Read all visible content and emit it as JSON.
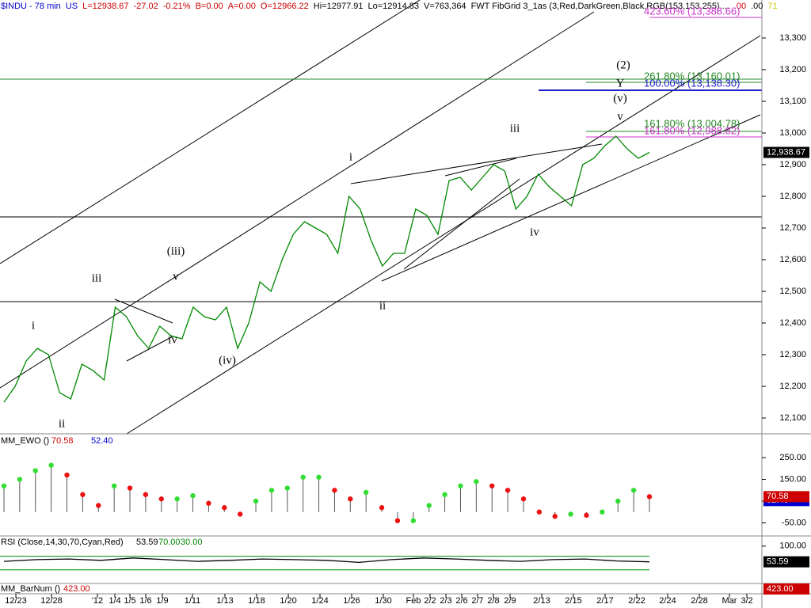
{
  "header": [
    {
      "text": "$INDU - 78 min",
      "color": "#0000cc"
    },
    {
      "text": "US",
      "color": "#0000cc"
    },
    {
      "text": "L=12938.67",
      "color": "#cc0000"
    },
    {
      "text": "-27.02",
      "color": "#cc0000"
    },
    {
      "text": "-0.21%",
      "color": "#cc0000"
    },
    {
      "text": "B=0.00",
      "color": "#cc0000"
    },
    {
      "text": "A=0.00",
      "color": "#cc0000"
    },
    {
      "text": "O=12966.22",
      "color": "#cc0000"
    },
    {
      "text": "Hi=12977.91",
      "color": "#000000"
    },
    {
      "text": "Lo=12914.83",
      "color": "#000000"
    },
    {
      "text": "V=763,364",
      "color": "#000000"
    },
    {
      "text": "FWT FibGrid 3_1as (3,Red,DarkGreen,Black,RGB(153,153,255)....",
      "color": "#000000"
    },
    {
      "text": ".00",
      "color": "#cc0000"
    },
    {
      "text": ".00",
      "color": "#000000"
    },
    {
      "text": "71",
      "color": "#cccc00"
    }
  ],
  "x_axis": [
    "12/23",
    "12/28",
    "'12",
    "1/4",
    "1/5",
    "1/6",
    "1/9",
    "1/11",
    "1/13",
    "1/18",
    "1/20",
    "1/24",
    "1/26",
    "1/30",
    "Feb",
    "2/2",
    "2/3",
    "2/6",
    "2/7",
    "2/8",
    "2/9",
    "2/13",
    "2/15",
    "2/17",
    "2/22",
    "2/24",
    "2/28",
    "Mar",
    "3/2"
  ],
  "chart_data": [
    {
      "type": "line",
      "series": [
        {
          "color": "#008800",
          "values": [
            12150,
            12200,
            12280,
            12320,
            12300,
            12180,
            12160,
            12270,
            12250,
            12220,
            12450,
            12420,
            12360,
            12320,
            12390,
            12360,
            12350,
            12450,
            12420,
            12410,
            12450,
            12320,
            12400,
            12530,
            12500,
            12600,
            12680,
            12720,
            12700,
            12680,
            12620,
            12800,
            12760,
            12660,
            12580,
            12620,
            12620,
            12760,
            12740,
            12680,
            12850,
            12860,
            12820,
            12860,
            12900,
            12880,
            12760,
            12800,
            12870,
            12830,
            12800,
            12770,
            12900,
            12920,
            12960,
            12990,
            12950,
            12920,
            12938.67
          ]
        }
      ],
      "ylim": [
        12050,
        13420
      ],
      "yticks": [
        {
          "value": 13300,
          "label": "13,300"
        },
        {
          "value": 13200,
          "label": "13,200"
        },
        {
          "value": 13100,
          "label": "13,100"
        },
        {
          "value": 13000,
          "label": "13,000"
        },
        {
          "value": 12900,
          "label": "12,900"
        },
        {
          "value": 12800,
          "label": "12,800"
        },
        {
          "value": 12700,
          "label": "12,700"
        },
        {
          "value": 12600,
          "label": "12,600"
        },
        {
          "value": 12500,
          "label": "12,500"
        },
        {
          "value": 12400,
          "label": "12,400"
        },
        {
          "value": 12300,
          "label": "12,300"
        },
        {
          "value": 12200,
          "label": "12,200"
        },
        {
          "value": 12100,
          "label": "12,100"
        }
      ],
      "last": {
        "value": 12938.67,
        "label": "12,938.67"
      },
      "annotations": [
        "i",
        "ii",
        "iii",
        "(iii)",
        "v",
        "iv",
        "(iv)",
        "i",
        "ii",
        "iii",
        "iv",
        "v",
        "(v)",
        "Y",
        "(2)"
      ],
      "fib_labels": [
        {
          "text": "423.60% (13,388.66)",
          "color": "#cc33cc"
        },
        {
          "text": "261.80% (13,160.01)",
          "color": "#228822"
        },
        {
          "text": "100.00% (13,138.30)",
          "color": "#2222cc"
        },
        {
          "text": "161.80% (13,004.78)",
          "color": "#228822"
        },
        {
          "text": "161.80% (12,988.82)",
          "color": "#cc33cc"
        }
      ]
    },
    {
      "type": "bar",
      "title": "MM_EWO ()",
      "readouts": [
        {
          "value": 70.58,
          "color": "#cc0000"
        },
        {
          "value": 52.4,
          "label": "52.40",
          "color": "#0000cc"
        }
      ],
      "values": [
        120,
        150,
        190,
        215,
        170,
        80,
        30,
        120,
        110,
        80,
        60,
        60,
        75,
        40,
        20,
        -10,
        50,
        100,
        110,
        160,
        160,
        100,
        60,
        90,
        20,
        -40,
        -40,
        30,
        80,
        120,
        140,
        120,
        100,
        60,
        0,
        -20,
        -10,
        -15,
        0,
        50,
        100,
        70.58
      ],
      "ylim": [
        -103,
        345
      ],
      "yticks": [
        {
          "value": 250,
          "label": "250.00"
        },
        {
          "value": 150,
          "label": "150.00"
        },
        {
          "value": 50,
          "label": "50.00"
        },
        {
          "value": -50,
          "label": "-50.00"
        }
      ]
    },
    {
      "type": "line",
      "title": "RSI (Close,14,30,70,Cyan,Red)",
      "readouts": [
        {
          "value": 53.59,
          "color": "#000000"
        },
        {
          "value": 70,
          "label": "70.00",
          "color": "#008800"
        },
        {
          "value": 30,
          "label": "30.00",
          "color": "#008800"
        }
      ],
      "series": [
        {
          "color": "#000000",
          "values": [
            55,
            60,
            62,
            58,
            65,
            60,
            55,
            58,
            62,
            60,
            58,
            52,
            60,
            65,
            62,
            58,
            55,
            60,
            62,
            56,
            53.59
          ]
        }
      ],
      "levels": [
        70,
        30
      ],
      "ylim": [
        -8,
        123
      ],
      "yticks": [
        {
          "value": 100,
          "label": "100.00"
        }
      ]
    },
    {
      "type": "readout",
      "title": "MM_BarNum ()",
      "readouts": [
        {
          "value": 423,
          "label": "423.00",
          "color": "#cc0000"
        }
      ]
    }
  ]
}
